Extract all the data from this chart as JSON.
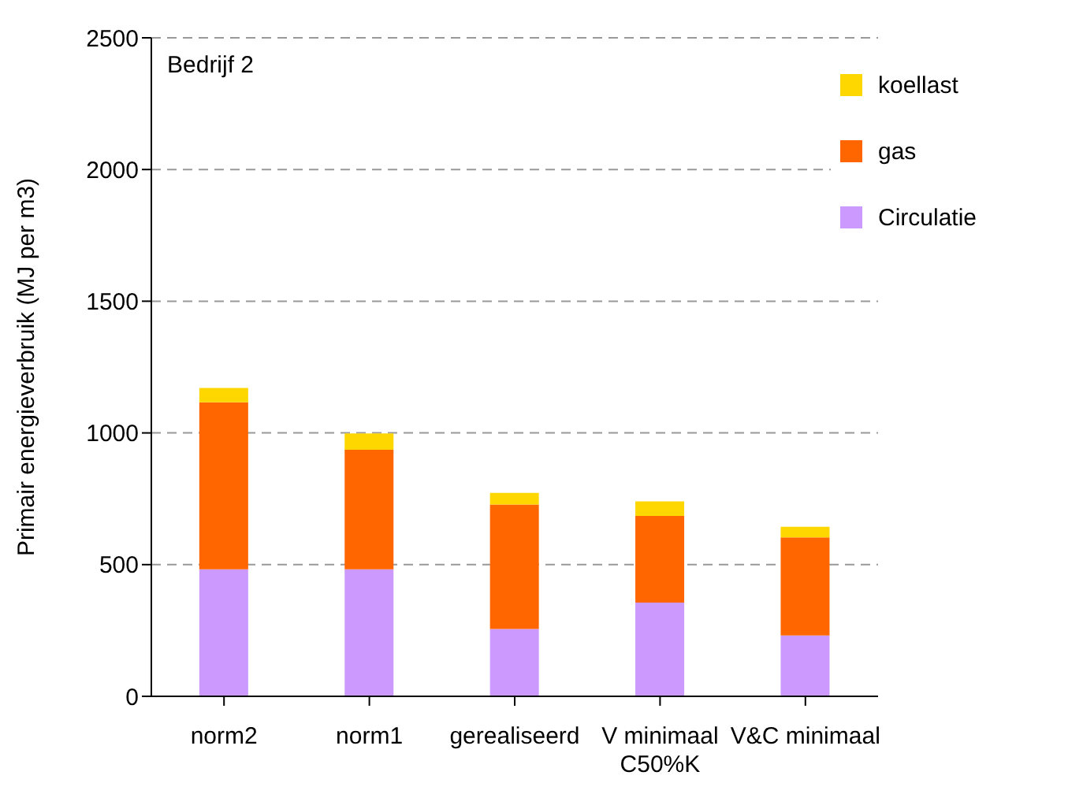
{
  "chart_data": {
    "type": "bar",
    "stacked": true,
    "ylabel": "Primair energieverbruik (MJ per m3)",
    "annotations": [
      "Bedrijf 2"
    ],
    "categories": [
      "norm2",
      "norm1",
      "gerealiseerd",
      "V minimaal C50%K",
      "V&C minimaal"
    ],
    "series": [
      {
        "name": "Circulatie",
        "color": "#cc99ff",
        "values": [
          482,
          482,
          256,
          356,
          231
        ]
      },
      {
        "name": "gas",
        "color": "#ff6600",
        "values": [
          634,
          454,
          472,
          329,
          372
        ]
      },
      {
        "name": "koellast",
        "color": "#ffd700",
        "values": [
          55,
          62,
          44,
          55,
          41
        ]
      }
    ],
    "ylim": [
      0,
      2500
    ],
    "yticks": [
      0,
      500,
      1000,
      1500,
      2000,
      2500
    ],
    "grid": "y",
    "legend": "top right"
  }
}
